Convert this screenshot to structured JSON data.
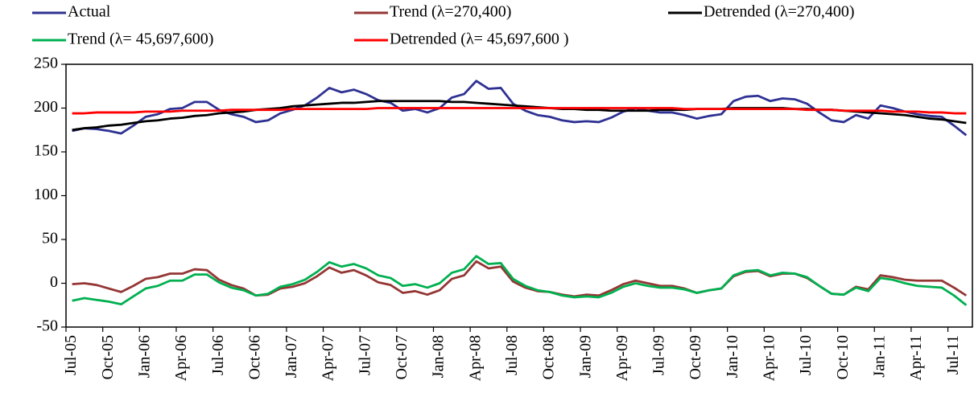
{
  "chart_data": {
    "type": "line",
    "categories": [
      "Jul-05",
      null,
      null,
      "Oct-05",
      null,
      null,
      "Jan-06",
      null,
      null,
      "Apr-06",
      null,
      null,
      "Jul-06",
      null,
      null,
      "Oct-06",
      null,
      null,
      "Jan-07",
      null,
      null,
      "Apr-07",
      null,
      null,
      "Jul-07",
      null,
      null,
      "Oct-07",
      null,
      null,
      "Jan-08",
      null,
      null,
      "Apr-08",
      null,
      null,
      "Jul-08",
      null,
      null,
      "Oct-08",
      null,
      null,
      "Jan-09",
      null,
      null,
      "Apr-09",
      null,
      null,
      "Jul-09",
      null,
      null,
      "Oct-09",
      null,
      null,
      "Jan-10",
      null,
      null,
      "Apr-10",
      null,
      null,
      "Jul-10",
      null,
      null,
      "Oct-10",
      null,
      null,
      "Jan-11",
      null,
      null,
      "Apr-11",
      null,
      null,
      "Jul-11",
      null
    ],
    "series": [
      {
        "name": "Actual",
        "color": "#2e3192",
        "values": [
          174,
          177,
          176,
          174,
          171,
          180,
          190,
          193,
          199,
          200,
          207,
          207,
          198,
          193,
          190,
          184,
          186,
          194,
          198,
          203,
          212,
          223,
          218,
          221,
          216,
          209,
          206,
          197,
          199,
          195,
          200,
          212,
          216,
          231,
          222,
          223,
          205,
          197,
          192,
          190,
          186,
          184,
          185,
          184,
          189,
          196,
          200,
          197,
          195,
          195,
          192,
          188,
          191,
          193,
          208,
          213,
          214,
          208,
          211,
          210,
          205,
          195,
          186,
          184,
          192,
          188,
          203,
          200,
          196,
          193,
          191,
          190,
          180,
          169
        ]
      },
      {
        "name": "Trend (λ=270,400)",
        "color": "#943634",
        "values": [
          -1,
          0,
          -2,
          -6,
          -10,
          -3,
          5,
          7,
          11,
          11,
          16,
          15,
          4,
          -2,
          -6,
          -14,
          -13,
          -6,
          -4,
          0,
          8,
          18,
          12,
          15,
          9,
          1,
          -2,
          -11,
          -9,
          -13,
          -8,
          5,
          9,
          25,
          17,
          19,
          2,
          -5,
          -9,
          -10,
          -13,
          -15,
          -13,
          -14,
          -8,
          -1,
          3,
          0,
          -3,
          -3,
          -6,
          -11,
          -8,
          -6,
          8,
          13,
          14,
          8,
          11,
          11,
          6,
          -3,
          -12,
          -13,
          -4,
          -7,
          9,
          7,
          4,
          3,
          3,
          3,
          -5,
          -14
        ]
      },
      {
        "name": "Detrended (λ=270,400)",
        "color": "#000000",
        "values": [
          175,
          177,
          178,
          180,
          181,
          183,
          185,
          186,
          188,
          189,
          191,
          192,
          194,
          195,
          196,
          198,
          199,
          200,
          202,
          203,
          204,
          205,
          206,
          206,
          207,
          208,
          208,
          208,
          208,
          208,
          208,
          207,
          207,
          206,
          205,
          204,
          203,
          202,
          201,
          200,
          199,
          199,
          198,
          198,
          197,
          197,
          197,
          197,
          198,
          198,
          198,
          199,
          199,
          199,
          200,
          200,
          200,
          200,
          200,
          199,
          199,
          198,
          198,
          197,
          196,
          195,
          194,
          193,
          192,
          190,
          188,
          187,
          185,
          183
        ]
      },
      {
        "name": "Trend (λ= 45,697,600)",
        "color": "#00b050",
        "values": [
          -20,
          -17,
          -19,
          -21,
          -24,
          -15,
          -6,
          -3,
          3,
          3,
          10,
          10,
          1,
          -5,
          -8,
          -14,
          -12,
          -4,
          -1,
          4,
          13,
          24,
          19,
          22,
          17,
          9,
          6,
          -3,
          -1,
          -5,
          0,
          12,
          16,
          31,
          22,
          23,
          5,
          -3,
          -8,
          -10,
          -14,
          -16,
          -15,
          -16,
          -11,
          -4,
          0,
          -3,
          -5,
          -5,
          -7,
          -11,
          -8,
          -6,
          9,
          14,
          15,
          9,
          12,
          11,
          7,
          -3,
          -12,
          -13,
          -5,
          -9,
          6,
          4,
          0,
          -3,
          -4,
          -5,
          -14,
          -25
        ]
      },
      {
        "name": "Detrended (λ= 45,697,600 )",
        "color": "#ff0000",
        "values": [
          194,
          194,
          195,
          195,
          195,
          195,
          196,
          196,
          196,
          197,
          197,
          197,
          197,
          198,
          198,
          198,
          198,
          198,
          199,
          199,
          199,
          199,
          199,
          199,
          199,
          200,
          200,
          200,
          200,
          200,
          200,
          200,
          200,
          200,
          200,
          200,
          200,
          200,
          200,
          200,
          200,
          200,
          200,
          200,
          200,
          200,
          200,
          200,
          200,
          200,
          199,
          199,
          199,
          199,
          199,
          199,
          199,
          199,
          199,
          199,
          198,
          198,
          198,
          197,
          197,
          197,
          197,
          196,
          196,
          196,
          195,
          195,
          194,
          194
        ]
      }
    ],
    "ylim": [
      -50,
      250
    ],
    "yticks": [
      -50,
      0,
      50,
      100,
      150,
      200,
      250
    ],
    "grid": false
  }
}
